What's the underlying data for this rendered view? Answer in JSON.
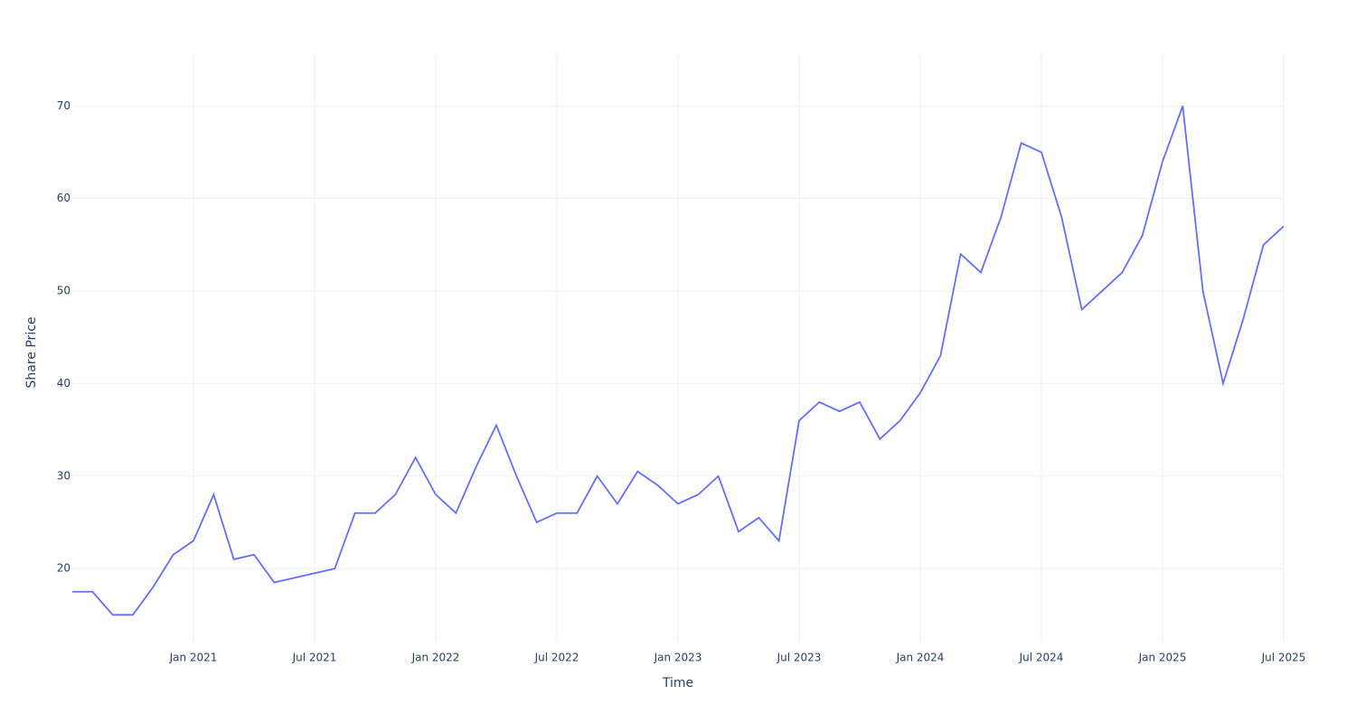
{
  "chart_data": {
    "type": "line",
    "x_label": "Time",
    "y_label": "Share Price",
    "x": [
      "2020-07",
      "2020-08",
      "2020-09",
      "2020-10",
      "2020-11",
      "2020-12",
      "2021-01",
      "2021-02",
      "2021-03",
      "2021-04",
      "2021-05",
      "2021-06",
      "2021-07",
      "2021-08",
      "2021-09",
      "2021-10",
      "2021-11",
      "2021-12",
      "2022-01",
      "2022-02",
      "2022-03",
      "2022-04",
      "2022-05",
      "2022-06",
      "2022-07",
      "2022-08",
      "2022-09",
      "2022-10",
      "2022-11",
      "2022-12",
      "2023-01",
      "2023-02",
      "2023-03",
      "2023-04",
      "2023-05",
      "2023-06",
      "2023-07",
      "2023-08",
      "2023-09",
      "2023-10",
      "2023-11",
      "2023-12",
      "2024-01",
      "2024-02",
      "2024-03",
      "2024-04",
      "2024-05",
      "2024-06",
      "2024-07",
      "2024-08",
      "2024-09",
      "2024-10",
      "2024-11",
      "2024-12",
      "2025-01",
      "2025-02",
      "2025-03",
      "2025-04",
      "2025-05",
      "2025-06",
      "2025-07"
    ],
    "series": [
      {
        "name": "Share Price",
        "color": "#636efa",
        "values": [
          17.5,
          17.5,
          15,
          15,
          18,
          21.5,
          23,
          28,
          21,
          21.5,
          18.5,
          19,
          19.5,
          20,
          26,
          26,
          28,
          32,
          28,
          26,
          31,
          35.5,
          30,
          25,
          26,
          26,
          30,
          27,
          30.5,
          29,
          27,
          28,
          30,
          24,
          25.5,
          23,
          36,
          38,
          37,
          38,
          34,
          36,
          39,
          43,
          54,
          52,
          58,
          66,
          65,
          58,
          48,
          50,
          52,
          56,
          64,
          70,
          50,
          40,
          47,
          55,
          57
        ]
      }
    ],
    "xlim": [
      "2020-07",
      "2025-07"
    ],
    "xticks": [
      {
        "value": "2021-01",
        "label": "Jan 2021"
      },
      {
        "value": "2021-07",
        "label": "Jul 2021"
      },
      {
        "value": "2022-01",
        "label": "Jan 2022"
      },
      {
        "value": "2022-07",
        "label": "Jul 2022"
      },
      {
        "value": "2023-01",
        "label": "Jan 2023"
      },
      {
        "value": "2023-07",
        "label": "Jul 2023"
      },
      {
        "value": "2024-01",
        "label": "Jan 2024"
      },
      {
        "value": "2024-07",
        "label": "Jul 2024"
      },
      {
        "value": "2025-01",
        "label": "Jan 2025"
      },
      {
        "value": "2025-07",
        "label": "Jul 2025"
      }
    ],
    "ylim": [
      12.1,
      75.6
    ],
    "yticks": [
      20,
      30,
      40,
      50,
      60,
      70
    ],
    "grid": true
  }
}
